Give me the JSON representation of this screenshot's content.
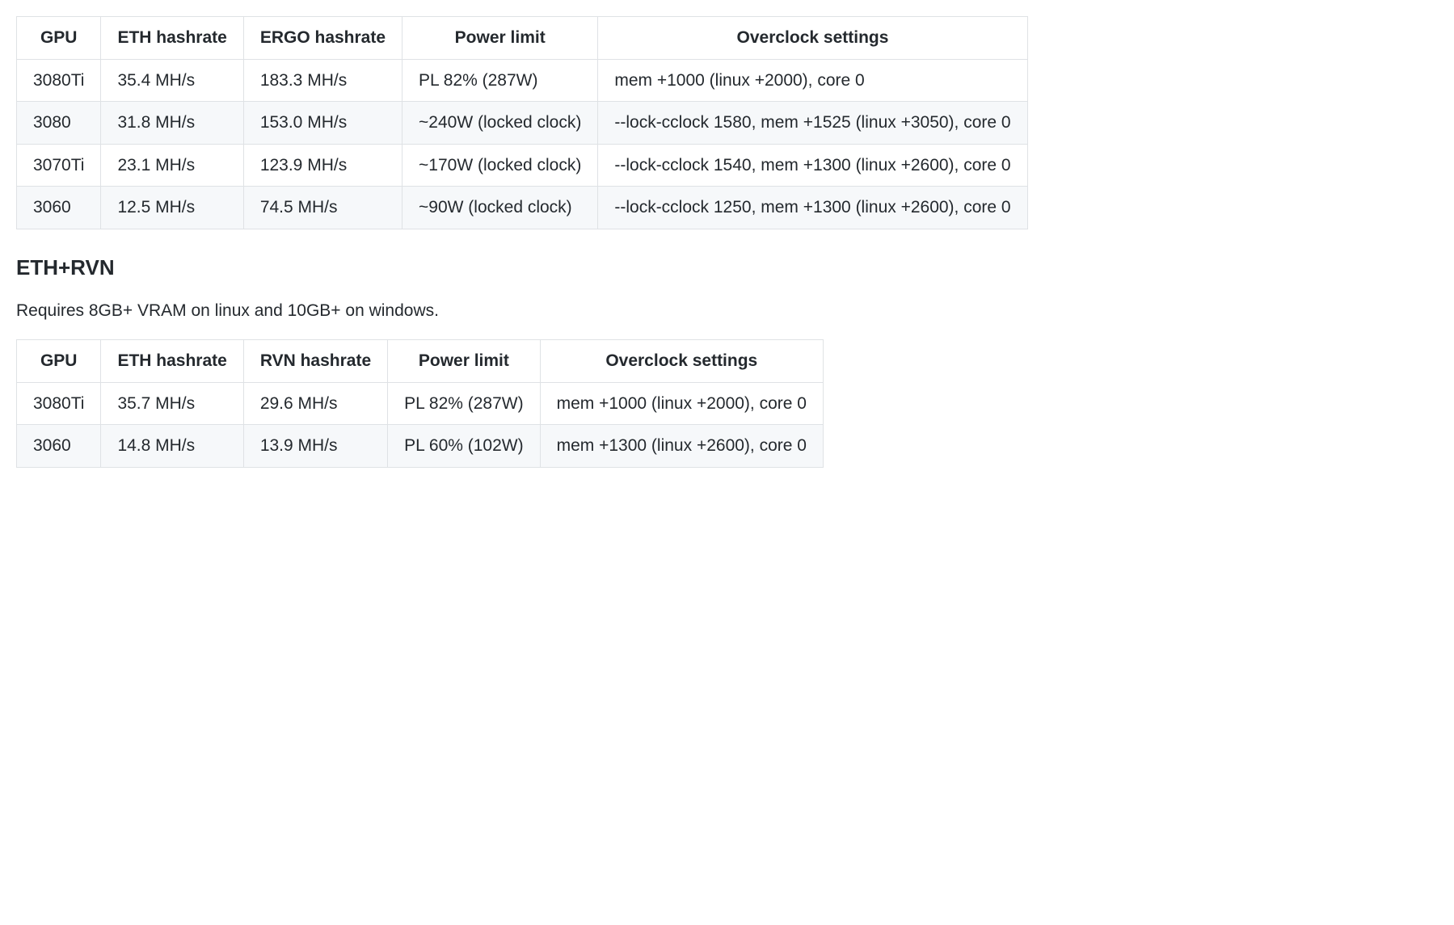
{
  "table1": {
    "columns": [
      "GPU",
      "ETH hashrate",
      "ERGO hashrate",
      "Power limit",
      "Overclock settings"
    ],
    "rows": [
      [
        "3080Ti",
        "35.4 MH/s",
        "183.3 MH/s",
        "PL 82% (287W)",
        "mem +1000 (linux +2000), core 0"
      ],
      [
        "3080",
        "31.8 MH/s",
        "153.0 MH/s",
        "~240W (locked clock)",
        "--lock-cclock 1580, mem +1525 (linux +3050), core 0"
      ],
      [
        "3070Ti",
        "23.1 MH/s",
        "123.9 MH/s",
        "~170W (locked clock)",
        "--lock-cclock 1540, mem +1300 (linux +2600), core 0"
      ],
      [
        "3060",
        "12.5 MH/s",
        "74.5 MH/s",
        "~90W (locked clock)",
        "--lock-cclock 1250, mem +1300 (linux +2600), core 0"
      ]
    ]
  },
  "section2": {
    "heading": "ETH+RVN",
    "description": "Requires 8GB+ VRAM on linux and 10GB+ on windows."
  },
  "table2": {
    "columns": [
      "GPU",
      "ETH hashrate",
      "RVN hashrate",
      "Power limit",
      "Overclock settings"
    ],
    "rows": [
      [
        "3080Ti",
        "35.7 MH/s",
        "29.6 MH/s",
        "PL 82% (287W)",
        "mem +1000 (linux +2000), core 0"
      ],
      [
        "3060",
        "14.8 MH/s",
        "13.9 MH/s",
        "PL 60% (102W)",
        "mem +1300 (linux +2600), core 0"
      ]
    ]
  },
  "styling": {
    "font_family": "-apple-system, BlinkMacSystemFont, Segoe UI, Helvetica, Arial, sans-serif",
    "body_fontsize": 21,
    "heading_fontsize": 26,
    "text_color": "#24292e",
    "background_color": "#ffffff",
    "row_alt_background": "#f6f8fa",
    "border_color": "#dfe2e5",
    "cell_padding": "10px 20px"
  }
}
